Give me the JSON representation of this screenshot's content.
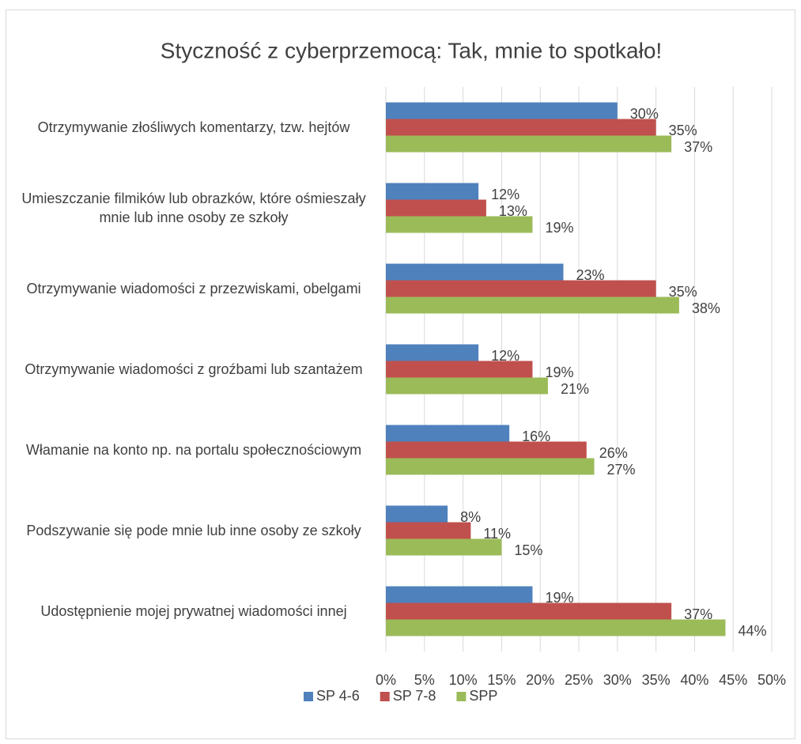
{
  "chart_data": {
    "type": "bar",
    "orientation": "horizontal",
    "title": "Styczność z cyberprzemocą: Tak, mnie to spotkało!",
    "categories": [
      "Otrzymywanie złośliwych komentarzy, tzw. hejtów",
      "Umieszczanie filmików lub obrazków, które ośmieszały mnie lub inne osoby ze szkoły",
      "Otrzymywanie wiadomości z przezwiskami, obelgami",
      "Otrzymywanie wiadomości z groźbami lub szantażem",
      "Włamanie na konto np. na portalu społecznościowym",
      "Podszywanie się pode mnie lub inne osoby ze szkoły",
      "Udostępnienie mojej prywatnej wiadomości innej"
    ],
    "series": [
      {
        "name": "SP 4-6",
        "color": "#4f81bd",
        "values": [
          30,
          12,
          23,
          12,
          16,
          8,
          19
        ],
        "value_labels": [
          "30%",
          "12%",
          "23%",
          "12%",
          "16%",
          "8%",
          "19%"
        ]
      },
      {
        "name": "SP 7-8",
        "color": "#c0504d",
        "values": [
          35,
          13,
          35,
          19,
          26,
          11,
          37
        ],
        "value_labels": [
          "35%",
          "13%",
          "35%",
          "19%",
          "26%",
          "11%",
          "37%"
        ]
      },
      {
        "name": "SPP",
        "color": "#9bbb59",
        "values": [
          37,
          19,
          38,
          21,
          27,
          15,
          44
        ],
        "value_labels": [
          "37%",
          "19%",
          "38%",
          "21%",
          "27%",
          "15%",
          "44%"
        ]
      }
    ],
    "xlim": [
      0,
      50
    ],
    "xticks": [
      {
        "value": 0,
        "label": "0%"
      },
      {
        "value": 5,
        "label": "5%"
      },
      {
        "value": 10,
        "label": "10%"
      },
      {
        "value": 15,
        "label": "15%"
      },
      {
        "value": 20,
        "label": "20%"
      },
      {
        "value": 25,
        "label": "25%"
      },
      {
        "value": 30,
        "label": "30%"
      },
      {
        "value": 35,
        "label": "35%"
      },
      {
        "value": 40,
        "label": "40%"
      },
      {
        "value": 45,
        "label": "45%"
      },
      {
        "value": 50,
        "label": "50%"
      }
    ],
    "grid": true,
    "legend": "bottom"
  }
}
